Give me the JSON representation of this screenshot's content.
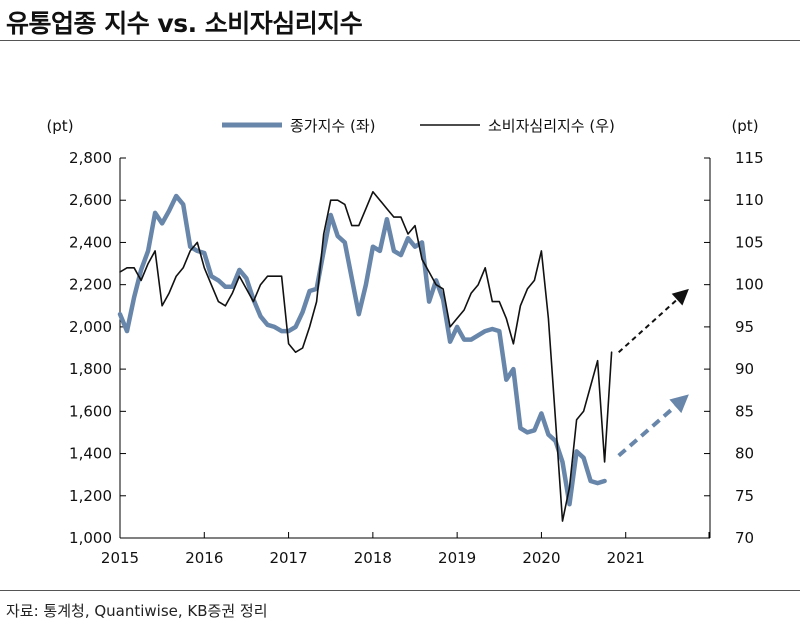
{
  "title": "유통업종 지수 vs. 소비자심리지수",
  "source": "자료: 통계청, Quantiwise, KB증권 정리",
  "chart_data": {
    "type": "line",
    "left_unit": "(pt)",
    "right_unit": "(pt)",
    "left_ylim": [
      1000,
      2800
    ],
    "left_ticks": [
      "1,000",
      "1,200",
      "1,400",
      "1,600",
      "1,800",
      "2,000",
      "2,200",
      "2,400",
      "2,600",
      "2,800"
    ],
    "right_ylim": [
      70,
      115
    ],
    "right_ticks": [
      "70",
      "75",
      "80",
      "85",
      "90",
      "95",
      "100",
      "105",
      "110",
      "115"
    ],
    "x_ticks": [
      "2015",
      "2016",
      "2017",
      "2018",
      "2019",
      "2020",
      "2021"
    ],
    "xlim": [
      2015,
      2022
    ],
    "legend_position": "top-center",
    "colors": {
      "stock": "#6886aa",
      "sentiment": "#111111"
    },
    "series": [
      {
        "name": "종가지수 (좌)",
        "axis": "left",
        "x": [
          2015.0,
          2015.083,
          2015.167,
          2015.25,
          2015.333,
          2015.417,
          2015.5,
          2015.583,
          2015.667,
          2015.75,
          2015.833,
          2015.917,
          2016.0,
          2016.083,
          2016.167,
          2016.25,
          2016.333,
          2016.417,
          2016.5,
          2016.583,
          2016.667,
          2016.75,
          2016.833,
          2016.917,
          2017.0,
          2017.083,
          2017.167,
          2017.25,
          2017.333,
          2017.417,
          2017.5,
          2017.583,
          2017.667,
          2017.75,
          2017.833,
          2017.917,
          2018.0,
          2018.083,
          2018.167,
          2018.25,
          2018.333,
          2018.417,
          2018.5,
          2018.583,
          2018.667,
          2018.75,
          2018.833,
          2018.917,
          2019.0,
          2019.083,
          2019.167,
          2019.25,
          2019.333,
          2019.417,
          2019.5,
          2019.583,
          2019.667,
          2019.75,
          2019.833,
          2019.917,
          2020.0,
          2020.083,
          2020.167,
          2020.25,
          2020.333,
          2020.417,
          2020.5,
          2020.583,
          2020.667,
          2020.75
        ],
        "values": [
          2060,
          1980,
          2140,
          2270,
          2360,
          2540,
          2490,
          2550,
          2620,
          2580,
          2380,
          2360,
          2350,
          2240,
          2220,
          2190,
          2190,
          2270,
          2230,
          2130,
          2050,
          2010,
          2000,
          1980,
          1980,
          2000,
          2070,
          2170,
          2180,
          2360,
          2530,
          2430,
          2400,
          2230,
          2060,
          2200,
          2380,
          2360,
          2510,
          2360,
          2340,
          2420,
          2380,
          2400,
          2120,
          2220,
          2130,
          1930,
          2000,
          1940,
          1940,
          1960,
          1980,
          1990,
          1980,
          1750,
          1800,
          1520,
          1500,
          1510,
          1590,
          1490,
          1460,
          1360,
          1160,
          1410,
          1380,
          1270,
          1260,
          1270
        ]
      },
      {
        "name": "소비자심리지수 (우)",
        "axis": "right",
        "x": [
          2015.0,
          2015.083,
          2015.167,
          2015.25,
          2015.333,
          2015.417,
          2015.5,
          2015.583,
          2015.667,
          2015.75,
          2015.833,
          2015.917,
          2016.0,
          2016.083,
          2016.167,
          2016.25,
          2016.333,
          2016.417,
          2016.5,
          2016.583,
          2016.667,
          2016.75,
          2016.833,
          2016.917,
          2017.0,
          2017.083,
          2017.167,
          2017.25,
          2017.333,
          2017.417,
          2017.5,
          2017.583,
          2017.667,
          2017.75,
          2017.833,
          2017.917,
          2018.0,
          2018.083,
          2018.167,
          2018.25,
          2018.333,
          2018.417,
          2018.5,
          2018.583,
          2018.667,
          2018.75,
          2018.833,
          2018.917,
          2019.0,
          2019.083,
          2019.167,
          2019.25,
          2019.333,
          2019.417,
          2019.5,
          2019.583,
          2019.667,
          2019.75,
          2019.833,
          2019.917,
          2020.0,
          2020.083,
          2020.167,
          2020.25,
          2020.333,
          2020.417,
          2020.5,
          2020.583,
          2020.667,
          2020.75,
          2020.833
        ],
        "values": [
          101.5,
          102,
          102,
          100.5,
          102.5,
          104,
          97.5,
          99,
          101,
          102,
          104,
          105,
          102,
          100,
          98,
          97.5,
          99,
          101,
          99.5,
          98,
          100,
          101,
          101,
          101,
          93,
          92,
          92.5,
          95,
          98,
          106,
          110,
          110,
          109.5,
          107,
          107,
          109,
          111,
          110,
          109,
          108,
          108,
          106,
          107,
          103,
          101.5,
          100,
          99.5,
          95,
          96,
          97,
          99,
          100,
          102,
          98,
          98,
          96,
          93,
          97.5,
          99.5,
          100.5,
          104,
          96,
          84,
          72,
          76,
          84,
          85,
          88,
          91,
          79,
          92
        ]
      }
    ],
    "annotations": [
      {
        "type": "dashed-arrow",
        "color": "#6886aa",
        "from": {
          "x": 2020.917,
          "y": 1390,
          "axis": "left"
        },
        "to": {
          "x": 2021.75,
          "y": 1680,
          "axis": "left"
        }
      },
      {
        "type": "dashed-arrow",
        "color": "#111111",
        "from": {
          "x": 2020.917,
          "y": 92,
          "axis": "right"
        },
        "to": {
          "x": 2021.75,
          "y": 99.5,
          "axis": "right"
        }
      }
    ]
  }
}
